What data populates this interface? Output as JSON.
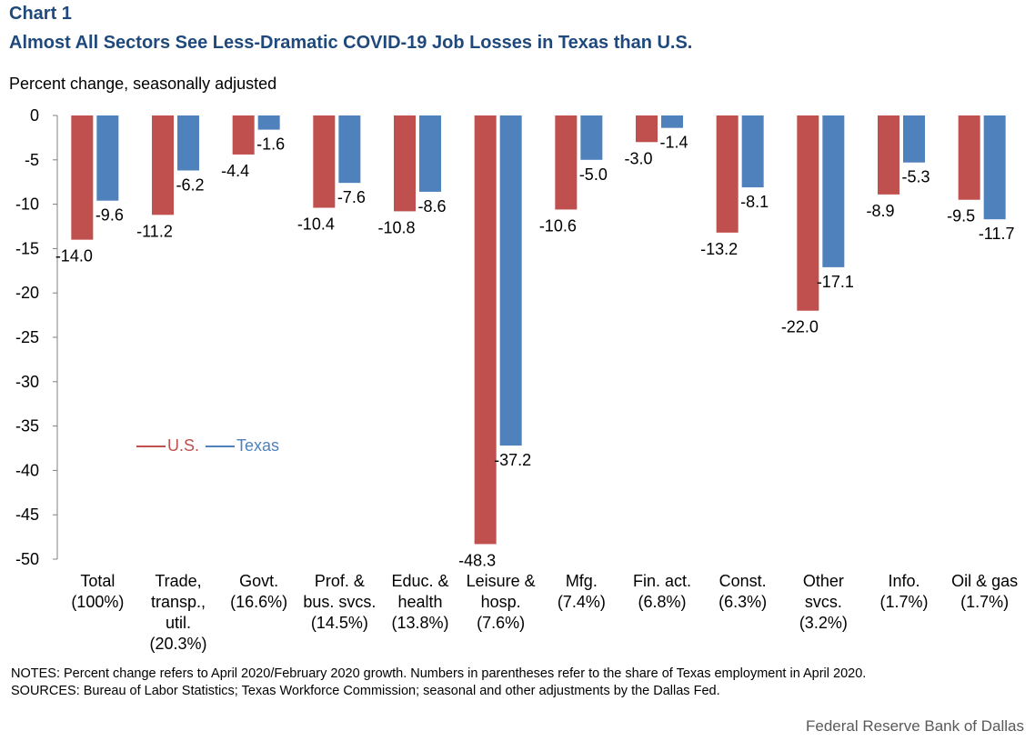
{
  "header": {
    "chart_label": "Chart 1",
    "title": "Almost All Sectors See Less-Dramatic COVID-19 Job Losses in Texas than U.S."
  },
  "colors": {
    "us": "#c0504d",
    "texas": "#4f81bd",
    "title": "#1f497d"
  },
  "chart_data": {
    "type": "bar",
    "title": "Almost All Sectors See Less-Dramatic COVID-19 Job Losses in Texas than U.S.",
    "xlabel": "",
    "ylabel": "Percent change, seasonally adjusted",
    "ylim": [
      -50,
      0
    ],
    "yticks": [
      0,
      -5,
      -10,
      -15,
      -20,
      -25,
      -30,
      -35,
      -40,
      -45,
      -50
    ],
    "categories": [
      [
        "Total",
        "(100%)"
      ],
      [
        "Trade,",
        "transp.,",
        "util.",
        "(20.3%)"
      ],
      [
        "Govt.",
        "(16.6%)"
      ],
      [
        "Prof. &",
        "bus. svcs.",
        "(14.5%)"
      ],
      [
        "Educ. &",
        "health",
        "(13.8%)"
      ],
      [
        "Leisure &",
        "hosp.",
        "(7.6%)"
      ],
      [
        "Mfg.",
        "(7.4%)"
      ],
      [
        "Fin. act.",
        "(6.8%)"
      ],
      [
        "Const.",
        "(6.3%)"
      ],
      [
        "Other",
        "svcs.",
        "(3.2%)"
      ],
      [
        "Info.",
        "(1.7%)"
      ],
      [
        "Oil & gas",
        "(1.7%)"
      ]
    ],
    "series": [
      {
        "name": "U.S.",
        "color": "#c0504d",
        "values": [
          -14.0,
          -11.2,
          -4.4,
          -10.4,
          -10.8,
          -48.3,
          -10.6,
          -3.0,
          -13.2,
          -22.0,
          -8.9,
          -9.5
        ],
        "labels": [
          "-14.0",
          "-11.2",
          "-4.4",
          "-10.4",
          "-10.8",
          "-48.3",
          "-10.6",
          "-3.0",
          "-13.2",
          "-22.0",
          "-8.9",
          "-9.5"
        ]
      },
      {
        "name": "Texas",
        "color": "#4f81bd",
        "values": [
          -9.6,
          -6.2,
          -1.6,
          -7.6,
          -8.6,
          -37.2,
          -5.0,
          -1.4,
          -8.1,
          -17.1,
          -5.3,
          -11.7
        ],
        "labels": [
          "-9.6",
          "-6.2",
          "-1.6",
          "-7.6",
          "-8.6",
          "-37.2",
          "-5.0",
          "-1.4",
          "-8.1",
          "-17.1",
          "-5.3",
          "-11.7"
        ]
      }
    ],
    "legend": "inside-left"
  },
  "notes": {
    "line1": "NOTES:  Percent change refers to April 2020/February 2020 growth.  Numbers in parentheses  refer to the share of Texas  employment  in April 2020.",
    "line2": "SOURCES:  Bureau of Labor Statistics;  Texas  Workforce Commission;  seasonal and other adjustments  by the Dallas Fed."
  },
  "footer": {
    "source": "Federal Reserve Bank of Dallas"
  }
}
